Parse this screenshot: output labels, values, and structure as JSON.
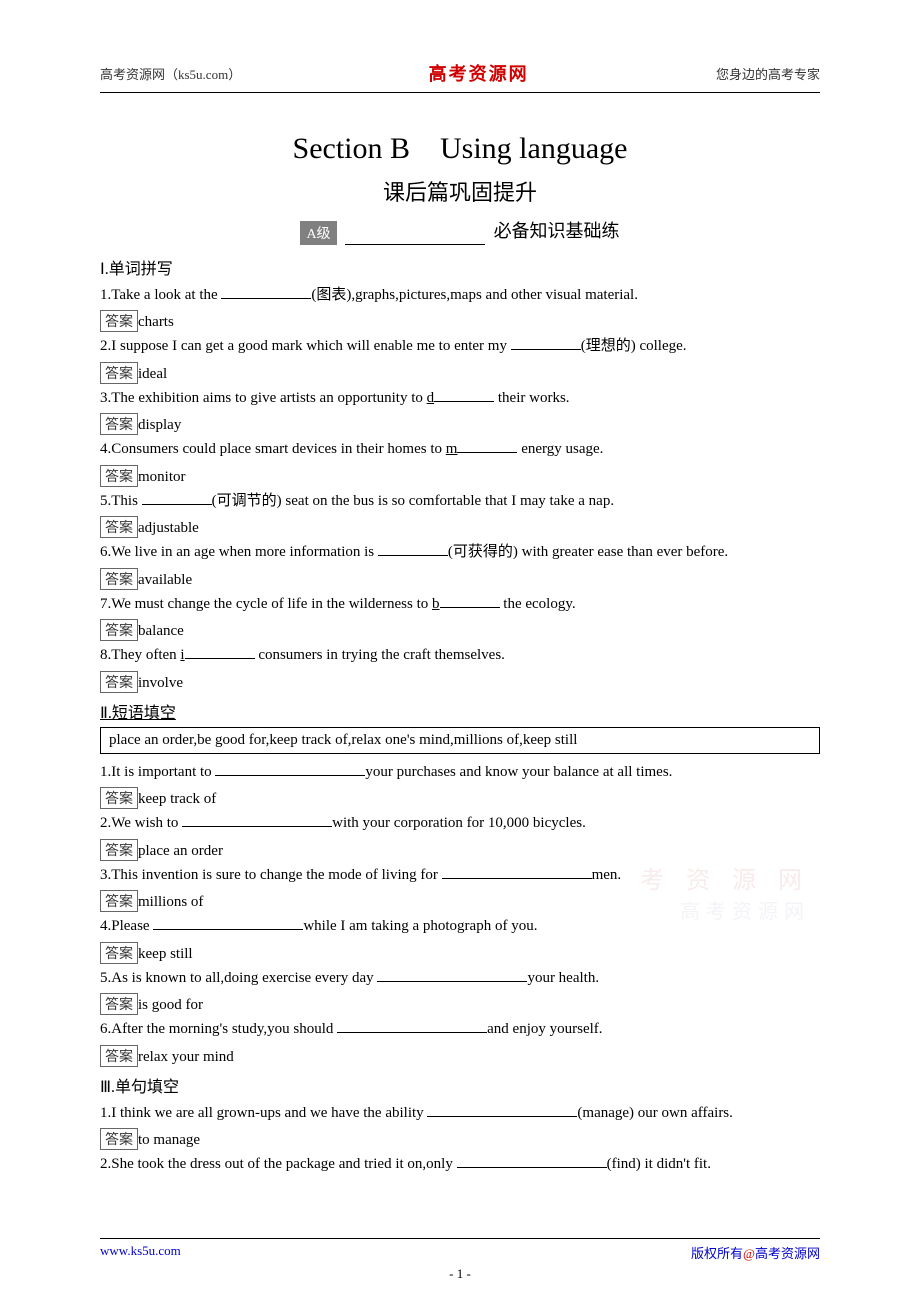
{
  "header": {
    "left": "高考资源网（ks5u.com）",
    "center": "高考资源网",
    "right": "您身边的高考专家"
  },
  "title": {
    "main": "Section B　Using language",
    "sub": "课后篇巩固提升"
  },
  "level": {
    "badge": "A级",
    "text": "必备知识基础练"
  },
  "sec1": {
    "heading": "Ⅰ.单词拼写",
    "ans_label": "答案",
    "q1": {
      "pre": "1.Take a look at the ",
      "post": "(图表),graphs,pictures,maps and other visual material.",
      "ans": "charts"
    },
    "q2": {
      "pre": "2.I suppose I can get a good mark which will enable me to enter my ",
      "post": "(理想的) college.",
      "ans": "ideal"
    },
    "q3": {
      "pre": "3.The exhibition aims to give artists an opportunity to ",
      "letter": "d",
      "post": " their works.",
      "ans": "display"
    },
    "q4": {
      "pre": "4.Consumers could place smart devices in their homes to ",
      "letter": "m",
      "post": " energy usage.",
      "ans": "monitor"
    },
    "q5": {
      "pre": "5.This ",
      "post": "(可调节的) seat on the bus is so comfortable that I may take a nap.",
      "ans": "adjustable"
    },
    "q6": {
      "pre": "6.We live in an age when more information is ",
      "post": "(可获得的) with greater ease than ever before.",
      "ans": "available"
    },
    "q7": {
      "pre": "7.We must change the cycle of life in the wilderness to ",
      "letter": "b",
      "post": " the ecology.",
      "ans": "balance"
    },
    "q8": {
      "pre": "8.They often ",
      "letter": "i",
      "post": " consumers in trying the craft themselves.",
      "ans": "involve"
    }
  },
  "sec2": {
    "heading": "Ⅱ.短语填空",
    "box": "place an order,be good for,keep track of,relax one's mind,millions of,keep still",
    "ans_label": "答案",
    "q1": {
      "pre": "1.It is important to ",
      "post": "your purchases and know your balance at all times.",
      "ans": "keep track of"
    },
    "q2": {
      "pre": "2.We wish to ",
      "post": "with your corporation for 10,000 bicycles.",
      "ans": "place an order"
    },
    "q3": {
      "pre": "3.This invention is sure to change the mode of living for ",
      "post": "men.",
      "ans": "millions of"
    },
    "q4": {
      "pre": "4.Please ",
      "post": "while I am taking a photograph of you.",
      "ans": "keep still"
    },
    "q5": {
      "pre": "5.As is known to all,doing exercise every day ",
      "post": "your health.",
      "ans": "is good for"
    },
    "q6": {
      "pre": "6.After the morning's study,you should ",
      "post": "and enjoy yourself.",
      "ans": "relax your mind"
    }
  },
  "sec3": {
    "heading": "Ⅲ.单句填空",
    "ans_label": "答案",
    "q1": {
      "pre": "1.I think we are all grown-ups and we have the ability ",
      "post": "(manage) our own affairs.",
      "ans": "to manage"
    },
    "q2": {
      "pre": "2.She took the dress out of the package and tried it on,only ",
      "post": "(find) it didn't fit."
    }
  },
  "watermark": {
    "line1": "考 资 源 网",
    "line2": "高考资源网"
  },
  "footer": {
    "left": "www.ks5u.com",
    "right_pre": "版权所有",
    "right_at": "@",
    "right_post": "高考资源网",
    "page": "- 1 -"
  }
}
